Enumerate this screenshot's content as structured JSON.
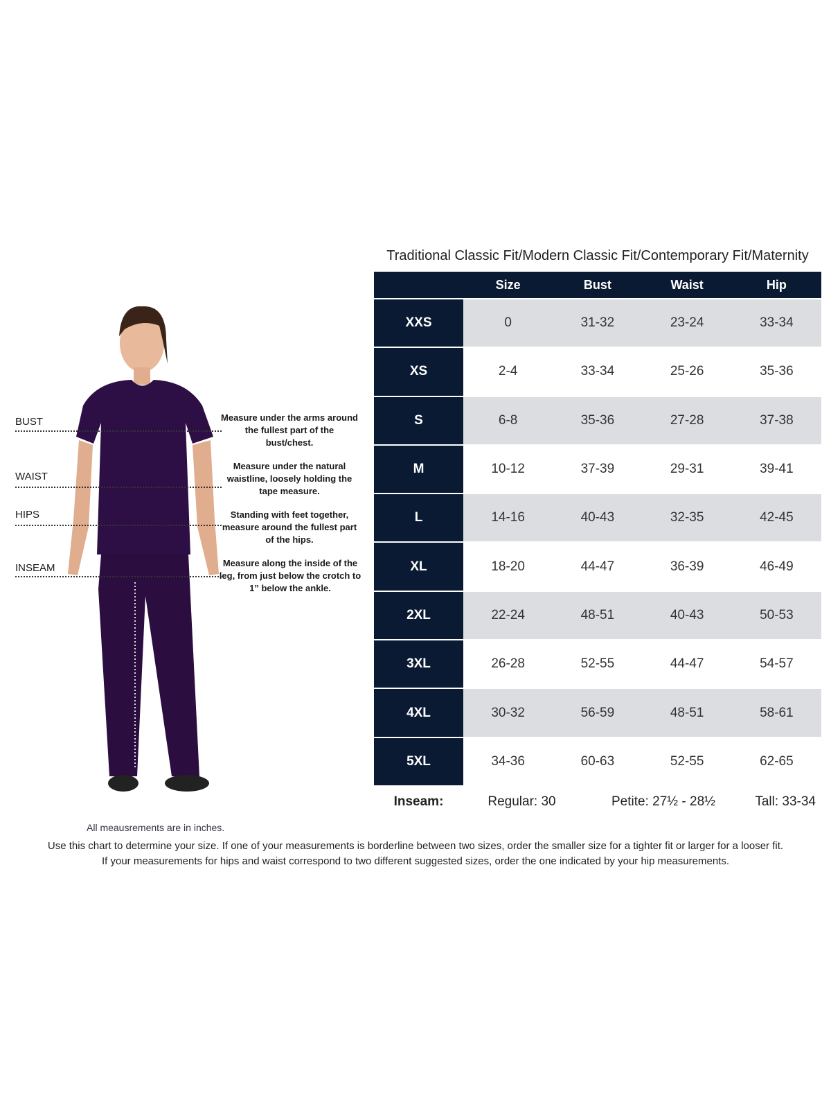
{
  "title": "Traditional Classic Fit/Modern Classic Fit/Contemporary Fit/Maternity",
  "headers": [
    "",
    "Size",
    "Bust",
    "Waist",
    "Hip"
  ],
  "rows": [
    {
      "label": "XXS",
      "size": "0",
      "bust": "31-32",
      "waist": "23-24",
      "hip": "33-34"
    },
    {
      "label": "XS",
      "size": "2-4",
      "bust": "33-34",
      "waist": "25-26",
      "hip": "35-36"
    },
    {
      "label": "S",
      "size": "6-8",
      "bust": "35-36",
      "waist": "27-28",
      "hip": "37-38"
    },
    {
      "label": "M",
      "size": "10-12",
      "bust": "37-39",
      "waist": "29-31",
      "hip": "39-41"
    },
    {
      "label": "L",
      "size": "14-16",
      "bust": "40-43",
      "waist": "32-35",
      "hip": "42-45"
    },
    {
      "label": "XL",
      "size": "18-20",
      "bust": "44-47",
      "waist": "36-39",
      "hip": "46-49"
    },
    {
      "label": "2XL",
      "size": "22-24",
      "bust": "48-51",
      "waist": "40-43",
      "hip": "50-53"
    },
    {
      "label": "3XL",
      "size": "26-28",
      "bust": "52-55",
      "waist": "44-47",
      "hip": "54-57"
    },
    {
      "label": "4XL",
      "size": "30-32",
      "bust": "56-59",
      "waist": "48-51",
      "hip": "58-61"
    },
    {
      "label": "5XL",
      "size": "34-36",
      "bust": "60-63",
      "waist": "52-55",
      "hip": "62-65"
    }
  ],
  "inseam": {
    "label": "Inseam:",
    "regular": "Regular: 30",
    "petite": "Petite: 27½ - 28½",
    "tall": "Tall: 33-34"
  },
  "measure": [
    {
      "label": "BUST",
      "desc": "Measure under the arms around the fullest part of the bust/chest."
    },
    {
      "label": "WAIST",
      "desc": "Measure under the natural waistline, loosely holding the tape measure."
    },
    {
      "label": "HIPS",
      "desc": "Standing with feet together, measure around the fullest part of the hips."
    },
    {
      "label": "INSEAM",
      "desc": "Measure along the inside of the leg, from just below the crotch to 1” below the ankle."
    }
  ],
  "units_note": "All meausrements are in inches.",
  "footer": [
    "Use this chart to determine your size. If one of your measurements is borderline between two sizes, order the smaller size for a tighter fit or larger for a looser fit.",
    "If your measurements for hips and waist correspond to two different suggested sizes, order the one indicated by your hip measurements."
  ],
  "colors": {
    "navy": "#0b1a33",
    "row_alt": "#dcdde1",
    "scrubs": "#2e0f45"
  }
}
